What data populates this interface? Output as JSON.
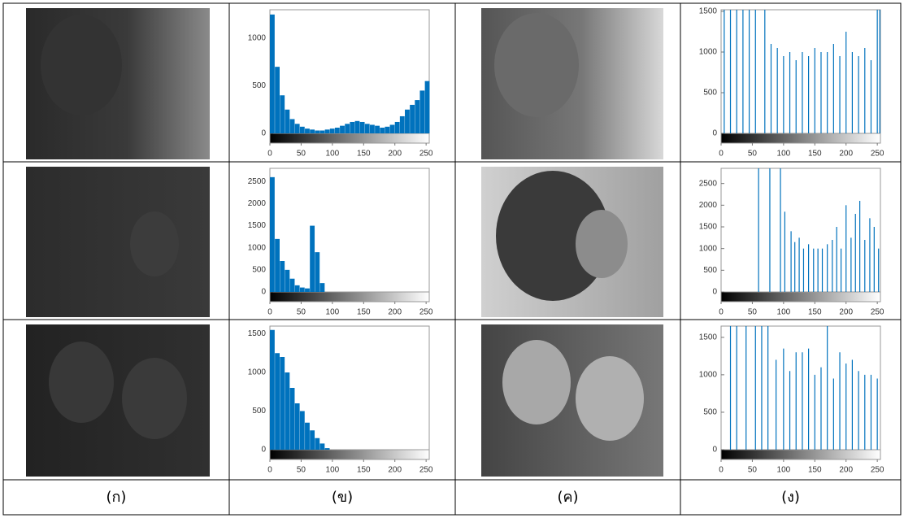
{
  "chart_data": [
    {
      "type": "histogram",
      "color": "#0072bd",
      "xlim": [
        0,
        255
      ],
      "xticks": [
        0,
        50,
        100,
        150,
        200,
        250
      ],
      "ylim": [
        0,
        1300
      ],
      "yticks": [
        0,
        500,
        1000
      ],
      "bins": [
        0,
        8,
        16,
        24,
        32,
        40,
        48,
        56,
        64,
        72,
        80,
        88,
        96,
        104,
        112,
        120,
        128,
        136,
        144,
        152,
        160,
        168,
        176,
        184,
        192,
        200,
        208,
        216,
        224,
        232,
        240,
        248,
        256
      ],
      "values": [
        1250,
        700,
        400,
        250,
        150,
        100,
        70,
        50,
        40,
        30,
        30,
        40,
        50,
        60,
        80,
        100,
        120,
        130,
        120,
        100,
        90,
        80,
        60,
        70,
        90,
        120,
        180,
        250,
        300,
        350,
        450,
        550
      ]
    },
    {
      "type": "stem",
      "color": "#0072bd",
      "xlim": [
        0,
        255
      ],
      "xticks": [
        0,
        50,
        100,
        150,
        200,
        250
      ],
      "ylim": [
        0,
        1520
      ],
      "yticks": [
        0,
        500,
        1000,
        1500
      ],
      "x": [
        5,
        15,
        25,
        35,
        45,
        55,
        70,
        80,
        90,
        100,
        110,
        120,
        130,
        140,
        150,
        160,
        170,
        180,
        190,
        200,
        210,
        220,
        230,
        240,
        250,
        254
      ],
      "values": [
        1520,
        1520,
        1520,
        1520,
        1520,
        1520,
        1520,
        1100,
        1050,
        950,
        1000,
        900,
        1000,
        950,
        1050,
        1000,
        1000,
        1100,
        950,
        1250,
        1000,
        950,
        1050,
        900,
        1520,
        1520
      ]
    },
    {
      "type": "histogram",
      "color": "#0072bd",
      "xlim": [
        0,
        255
      ],
      "xticks": [
        0,
        50,
        100,
        150,
        200,
        250
      ],
      "ylim": [
        0,
        2800
      ],
      "yticks": [
        0,
        500,
        1000,
        1500,
        2000,
        2500
      ],
      "bins": [
        0,
        8,
        16,
        24,
        32,
        40,
        48,
        56,
        64,
        72,
        80,
        88,
        96,
        104,
        112,
        120,
        128,
        136,
        144,
        152,
        160,
        168,
        176,
        184,
        192,
        200,
        208,
        216,
        224,
        232,
        240,
        248,
        256
      ],
      "values": [
        2600,
        1200,
        700,
        500,
        300,
        150,
        100,
        80,
        1500,
        900,
        200,
        0,
        0,
        0,
        0,
        0,
        0,
        0,
        0,
        0,
        0,
        0,
        0,
        0,
        0,
        0,
        0,
        0,
        0,
        0,
        0,
        0
      ]
    },
    {
      "type": "stem",
      "color": "#0072bd",
      "xlim": [
        0,
        255
      ],
      "xticks": [
        0,
        50,
        100,
        150,
        200,
        250
      ],
      "ylim": [
        0,
        2850
      ],
      "yticks": [
        0,
        500,
        1000,
        1500,
        2000,
        2500
      ],
      "x": [
        60,
        78,
        95,
        102,
        112,
        118,
        125,
        132,
        140,
        148,
        155,
        162,
        170,
        178,
        185,
        192,
        200,
        208,
        215,
        222,
        230,
        238,
        245,
        252
      ],
      "values": [
        2850,
        2850,
        2850,
        1850,
        1400,
        1150,
        1250,
        1000,
        1100,
        1000,
        1000,
        1000,
        1100,
        1200,
        1500,
        1000,
        2000,
        1250,
        1800,
        2100,
        1200,
        1700,
        1500,
        1000
      ]
    },
    {
      "type": "histogram",
      "color": "#0072bd",
      "xlim": [
        0,
        255
      ],
      "xticks": [
        0,
        50,
        100,
        150,
        200,
        250
      ],
      "ylim": [
        0,
        1600
      ],
      "yticks": [
        0,
        500,
        1000,
        1500
      ],
      "bins": [
        0,
        8,
        16,
        24,
        32,
        40,
        48,
        56,
        64,
        72,
        80,
        88,
        96,
        104,
        112,
        120,
        128,
        136,
        144,
        152,
        160,
        168,
        176,
        184,
        192,
        200,
        208,
        216,
        224,
        232,
        240,
        248,
        256
      ],
      "values": [
        1550,
        1250,
        1200,
        1000,
        800,
        600,
        500,
        350,
        250,
        150,
        80,
        20,
        0,
        0,
        0,
        0,
        0,
        0,
        0,
        0,
        0,
        0,
        0,
        0,
        0,
        0,
        0,
        0,
        0,
        0,
        0,
        0
      ]
    },
    {
      "type": "stem",
      "color": "#0072bd",
      "xlim": [
        0,
        255
      ],
      "xticks": [
        0,
        50,
        100,
        150,
        200,
        250
      ],
      "ylim": [
        0,
        1650
      ],
      "yticks": [
        0,
        500,
        1000,
        1500
      ],
      "x": [
        15,
        25,
        40,
        55,
        65,
        75,
        88,
        100,
        110,
        120,
        130,
        140,
        150,
        160,
        170,
        180,
        190,
        200,
        210,
        220,
        230,
        240,
        250
      ],
      "values": [
        1650,
        1650,
        1650,
        1650,
        1650,
        1650,
        1200,
        1350,
        1050,
        1300,
        1300,
        1350,
        1000,
        1100,
        1650,
        950,
        1300,
        1150,
        1200,
        1050,
        1000,
        1000,
        950
      ]
    }
  ],
  "column_labels": [
    "(ก)",
    "(ข)",
    "(ค)",
    "(ง)"
  ]
}
